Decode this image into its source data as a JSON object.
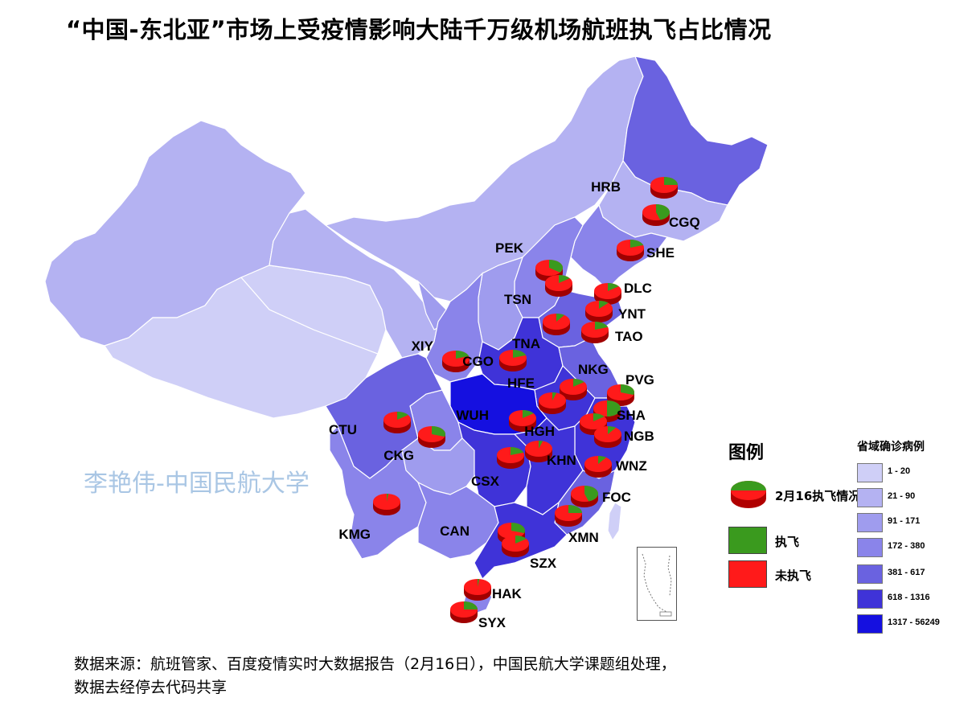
{
  "title": "“中国-东北亚”市场上受疫情影响大陆千万级机场航班执飞占比情况",
  "watermark": "李艳伟-中国民航大学",
  "legend": {
    "title": "图例",
    "pie_label": "2月16执飞情况",
    "flown_label": "执飞",
    "not_flown_label": "未执飞",
    "flown_color": "#3a9a1e",
    "not_flown_color": "#ff1a1a"
  },
  "scale": {
    "title": "省域确诊病例",
    "classes": [
      {
        "label": "1 - 20",
        "color": "#cfcff7"
      },
      {
        "label": "21 - 90",
        "color": "#b4b2f2"
      },
      {
        "label": "91 - 171",
        "color": "#9f9cee"
      },
      {
        "label": "172 - 380",
        "color": "#8a84ea"
      },
      {
        "label": "381 - 617",
        "color": "#6a62e0"
      },
      {
        "label": "618 - 1316",
        "color": "#3f33d8"
      },
      {
        "label": "1317 - 56249",
        "color": "#1510e0"
      }
    ]
  },
  "airports": [
    {
      "code": "HRB",
      "flown": 0.25
    },
    {
      "code": "CGQ",
      "flown": 0.45
    },
    {
      "code": "SHE",
      "flown": 0.2
    },
    {
      "code": "PEK",
      "flown": 0.35
    },
    {
      "code": "TSN",
      "flown": 0.15
    },
    {
      "code": "DLC",
      "flown": 0.15
    },
    {
      "code": "YNT",
      "flown": 0.12
    },
    {
      "code": "TAO",
      "flown": 0.2
    },
    {
      "code": "TNA",
      "flown": 0.1
    },
    {
      "code": "XIY",
      "flown": 0.2
    },
    {
      "code": "CGO",
      "flown": 0.2
    },
    {
      "code": "NKG",
      "flown": 0.15
    },
    {
      "code": "HFE",
      "flown": 0.05
    },
    {
      "code": "PVG",
      "flown": 0.3
    },
    {
      "code": "SHA",
      "flown": 0.5
    },
    {
      "code": "WUH",
      "flown": 0.15
    },
    {
      "code": "HGH",
      "flown": 0.15
    },
    {
      "code": "NGB",
      "flown": 0.1
    },
    {
      "code": "CTU",
      "flown": 0.15
    },
    {
      "code": "CKG",
      "flown": 0.3
    },
    {
      "code": "KHN",
      "flown": 0.05
    },
    {
      "code": "CSX",
      "flown": 0.2
    },
    {
      "code": "WNZ",
      "flown": 0.1
    },
    {
      "code": "FOC",
      "flown": 0.45
    },
    {
      "code": "XMN",
      "flown": 0.25
    },
    {
      "code": "KMG",
      "flown": 0.02
    },
    {
      "code": "CAN",
      "flown": 0.3
    },
    {
      "code": "SZX",
      "flown": 0.15
    },
    {
      "code": "HAK",
      "flown": 0.02
    },
    {
      "code": "SYX",
      "flown": 0.25
    }
  ],
  "source": {
    "line1": "数据来源：航班管家、百度疫情实时大数据报告（2月16日），中国民航大学课题组处理，",
    "line2": "数据去经停去代码共享"
  }
}
